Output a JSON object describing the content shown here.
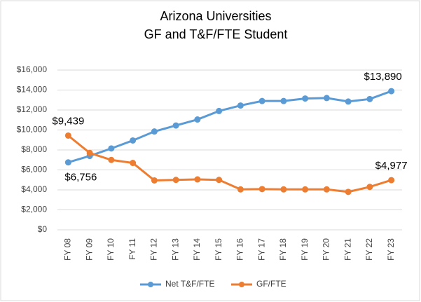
{
  "chart_data": {
    "type": "line",
    "title": "Arizona Universities",
    "subtitle": "GF and T&F/FTE Student",
    "categories": [
      "FY 08",
      "FY 09",
      "FY 10",
      "FY 11",
      "FY 12",
      "FY 13",
      "FY 14",
      "FY 15",
      "FY 16",
      "FY 17",
      "FY 18",
      "FY 19",
      "FY 20",
      "FY 21",
      "FY 22",
      "FY 23"
    ],
    "series": [
      {
        "name": "Net T&F/FTE",
        "color": "#5b9bd5",
        "values": [
          6756,
          7400,
          8150,
          8950,
          9850,
          10450,
          11050,
          11900,
          12450,
          12900,
          12900,
          13150,
          13200,
          12850,
          13100,
          13890
        ],
        "value_labels": [
          "$6,756",
          null,
          null,
          null,
          null,
          null,
          null,
          null,
          null,
          null,
          null,
          null,
          null,
          null,
          null,
          "$13,890"
        ]
      },
      {
        "name": "GF/FTE",
        "color": "#ed7d31",
        "values": [
          9439,
          7700,
          7000,
          6700,
          4950,
          5000,
          5050,
          5000,
          4050,
          4080,
          4050,
          4050,
          4050,
          3800,
          4300,
          4977
        ],
        "value_labels": [
          "$9,439",
          null,
          null,
          null,
          null,
          null,
          null,
          null,
          null,
          null,
          null,
          null,
          null,
          null,
          null,
          "$4,977"
        ]
      }
    ],
    "ylim": [
      0,
      16000
    ],
    "yticks": [
      {
        "value": 0,
        "label": "$0"
      },
      {
        "value": 2000,
        "label": "$2,000"
      },
      {
        "value": 4000,
        "label": "$4,000"
      },
      {
        "value": 6000,
        "label": "$6,000"
      },
      {
        "value": 8000,
        "label": "$8,000"
      },
      {
        "value": 10000,
        "label": "$10,000"
      },
      {
        "value": 12000,
        "label": "$12,000"
      },
      {
        "value": 14000,
        "label": "$14,000"
      },
      {
        "value": 16000,
        "label": "$16,000"
      }
    ],
    "grid": true,
    "legend": "bottom"
  }
}
